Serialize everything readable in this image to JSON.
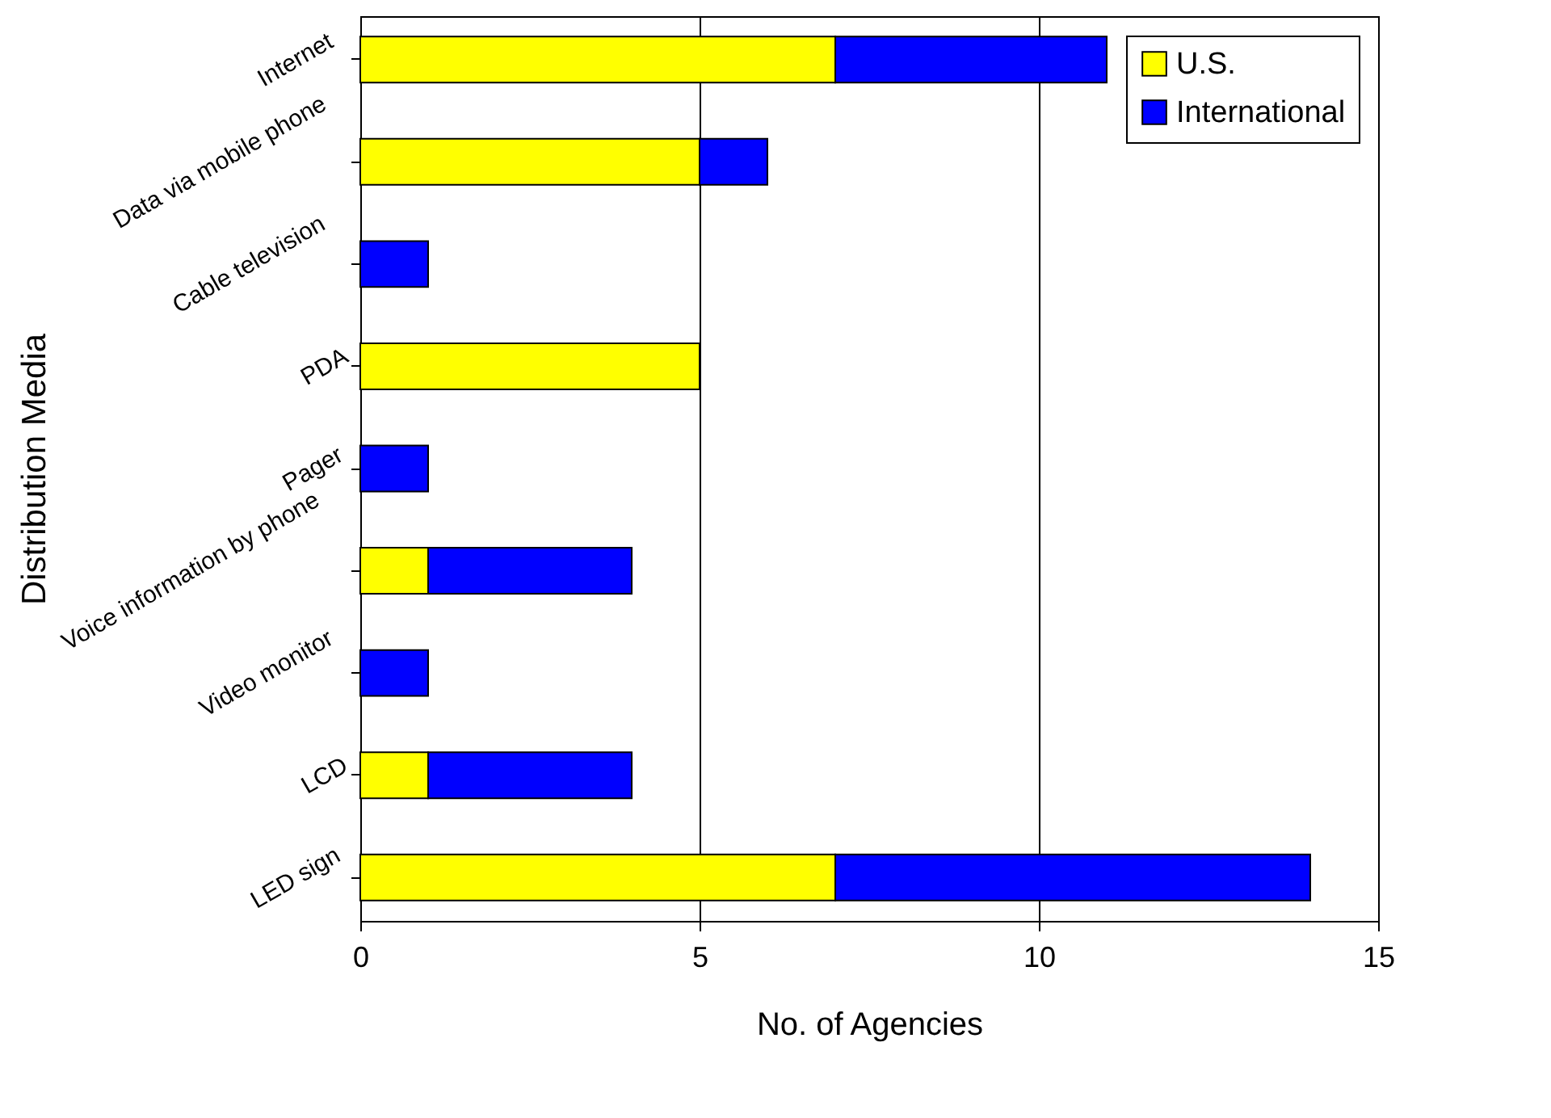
{
  "chart_data": {
    "type": "bar",
    "orientation": "horizontal",
    "stacked": true,
    "xlabel": "No. of Agencies",
    "ylabel": "Distribution Media",
    "categories": [
      "Internet",
      "Data via mobile phone",
      "Cable television",
      "PDA",
      "Pager",
      "Voice information by phone",
      "Video monitor",
      "LCD",
      "LED sign"
    ],
    "series": [
      {
        "name": "U.S.",
        "color": "#ffff00",
        "values": [
          7,
          5,
          null,
          5,
          null,
          1,
          null,
          1,
          7
        ]
      },
      {
        "name": "International",
        "color": "#0000ff",
        "values": [
          4,
          1,
          1,
          null,
          1,
          3,
          1,
          3,
          7
        ]
      }
    ],
    "xlim": [
      0,
      15
    ],
    "xticks": [
      0,
      5,
      10,
      15
    ],
    "grid": "x",
    "legend": "top right"
  }
}
